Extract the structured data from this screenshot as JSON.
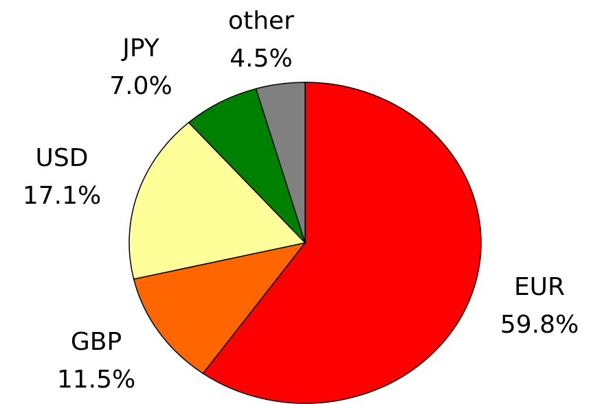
{
  "chart_data": {
    "type": "pie",
    "categories": [
      "EUR",
      "GBP",
      "USD",
      "JPY",
      "other"
    ],
    "values": [
      59.8,
      11.5,
      17.1,
      7.0,
      4.5
    ],
    "value_labels": [
      "59.8%",
      "11.5%",
      "17.1%",
      "7.0%",
      "4.5%"
    ],
    "colors": [
      "#ff0000",
      "#ff6600",
      "#ffff99",
      "#008000",
      "#808080"
    ]
  }
}
